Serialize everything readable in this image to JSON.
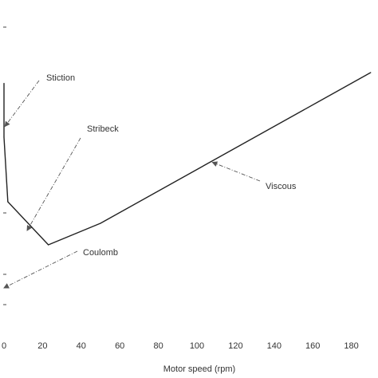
{
  "chart_data": {
    "type": "line",
    "title": "",
    "xlabel": "Motor speed (rpm)",
    "ylabel": "",
    "xlim": [
      0,
      190
    ],
    "xticks": [
      0,
      20,
      40,
      60,
      80,
      100,
      120,
      140,
      160,
      180
    ],
    "grid": false,
    "series": [
      {
        "x": [
          0,
          0,
          2,
          23,
          50,
          190
        ],
        "y": [
          0.79,
          0.64,
          0.46,
          0.34,
          0.4,
          0.82
        ]
      }
    ],
    "annotations": [
      {
        "text": "Stiction",
        "x": 0.5,
        "y": 0.67
      },
      {
        "text": "Stribeck",
        "x": 12,
        "y": 0.38
      },
      {
        "text": "Viscous",
        "x": 108,
        "y": 0.57
      },
      {
        "text": "Coulomb",
        "x": 0,
        "y": 0.22
      }
    ],
    "colors": {
      "line": "#222222",
      "annotation": "#555555",
      "text": "#333333"
    }
  }
}
